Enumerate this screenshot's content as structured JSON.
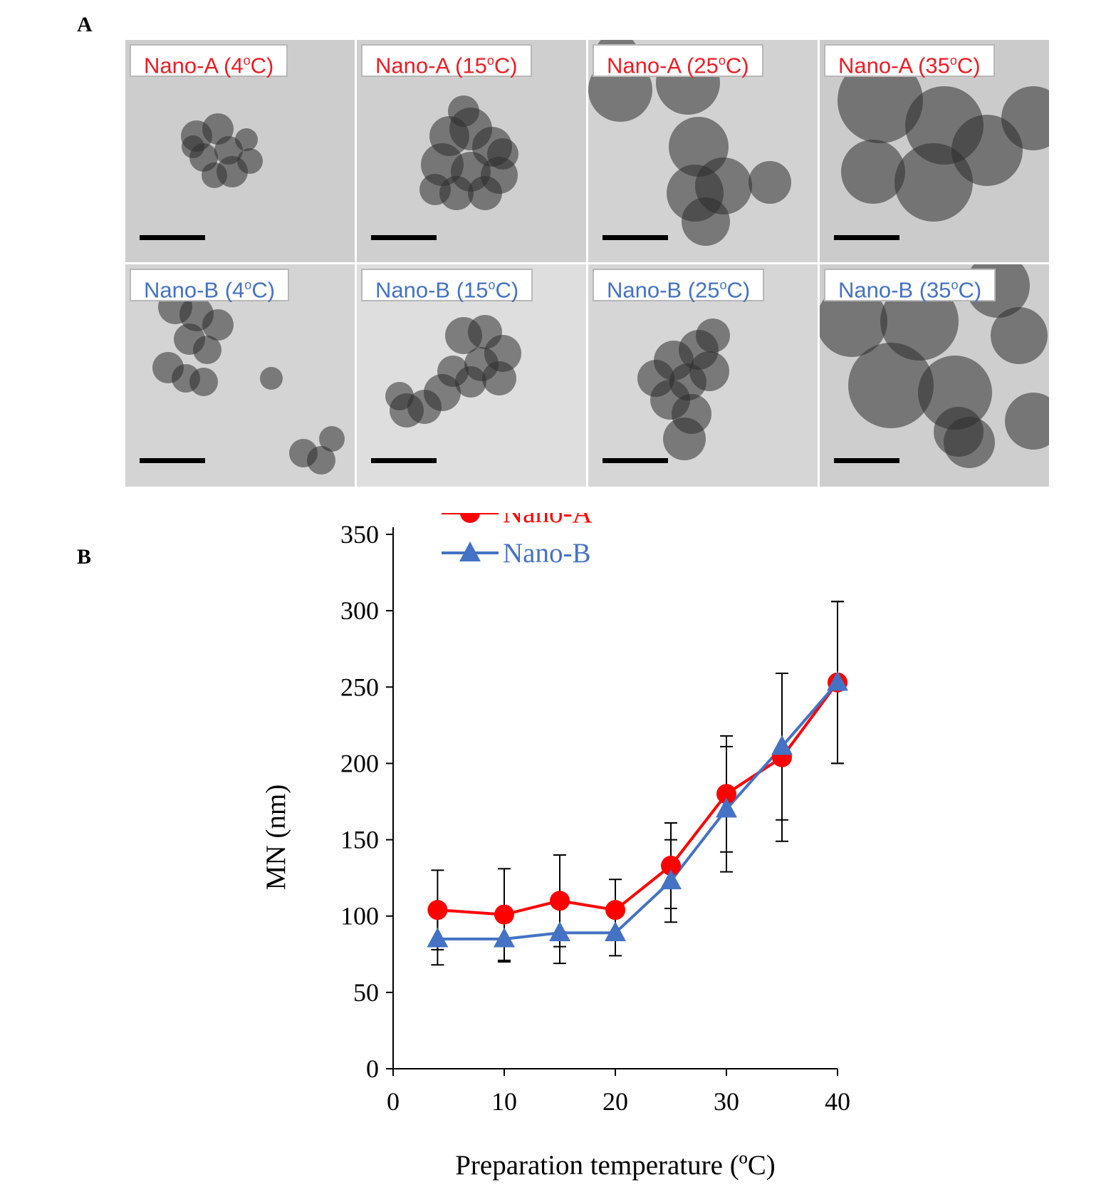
{
  "figure": {
    "panel_a_label": "A",
    "panel_b_label": "B"
  },
  "tem_panels": [
    {
      "series": "Nano-A",
      "label": "Nano-A (4",
      "sup": "o",
      "unit": "C)",
      "color": "#ee1c24"
    },
    {
      "series": "Nano-A",
      "label": "Nano-A (15",
      "sup": "o",
      "unit": "C)",
      "color": "#ee1c24"
    },
    {
      "series": "Nano-A",
      "label": "Nano-A (25",
      "sup": "o",
      "unit": "C)",
      "color": "#ee1c24"
    },
    {
      "series": "Nano-A",
      "label": "Nano-A (35",
      "sup": "o",
      "unit": "C)",
      "color": "#ee1c24"
    },
    {
      "series": "Nano-B",
      "label": "Nano-B (4",
      "sup": "o",
      "unit": "C)",
      "color": "#4472c4"
    },
    {
      "series": "Nano-B",
      "label": "Nano-B (15",
      "sup": "o",
      "unit": "C)",
      "color": "#4472c4"
    },
    {
      "series": "Nano-B",
      "label": "Nano-B (25",
      "sup": "o",
      "unit": "C)",
      "color": "#4472c4"
    },
    {
      "series": "Nano-B",
      "label": "Nano-B (35",
      "sup": "o",
      "unit": "C)",
      "color": "#4472c4"
    }
  ],
  "chart_data": {
    "type": "line",
    "xlabel": "Preparation temperature (ºC)",
    "ylabel": "MN (nm)",
    "xlim": [
      0,
      40
    ],
    "ylim": [
      0,
      350
    ],
    "xticks": [
      0,
      10,
      20,
      30,
      40
    ],
    "yticks": [
      0,
      50,
      100,
      150,
      200,
      250,
      300,
      350
    ],
    "grid": false,
    "legend_position": "top-left",
    "x": [
      4,
      10,
      15,
      20,
      25,
      30,
      35,
      40
    ],
    "series": [
      {
        "name": "Nano-A",
        "color": "#ff0000",
        "marker": "circle",
        "values": [
          104,
          101,
          110,
          104,
          133,
          180,
          204,
          253
        ],
        "errors": [
          26,
          30,
          30,
          20,
          28,
          38,
          55,
          53
        ]
      },
      {
        "name": "Nano-B",
        "color": "#4472c4",
        "marker": "triangle",
        "values": [
          85,
          85,
          89,
          89,
          123,
          170,
          211,
          253
        ],
        "errors": [
          17,
          15,
          20,
          15,
          27,
          41,
          48,
          53
        ]
      }
    ]
  }
}
